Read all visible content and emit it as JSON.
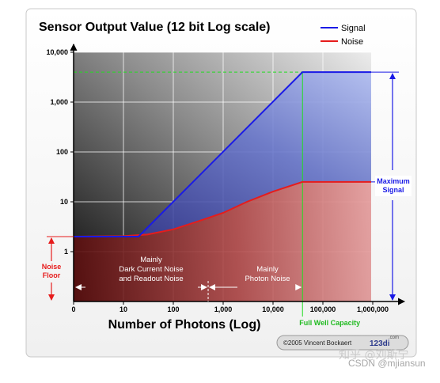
{
  "chart_data": {
    "type": "line",
    "title": "Sensor Output Value (12 bit Log scale)",
    "xlabel": "Number of Photons (Log)",
    "ylabel": "",
    "x_scale": "log",
    "y_scale": "log",
    "x_ticks": [
      "0",
      "10",
      "100",
      "1,000",
      "10,000",
      "100,000",
      "1,000,000"
    ],
    "y_ticks": [
      "1",
      "10",
      "100",
      "1,000",
      "10,000"
    ],
    "xlim": [
      1,
      3000000
    ],
    "ylim": [
      0.1,
      10000
    ],
    "grid": true,
    "legend_position": "top-right",
    "series": [
      {
        "name": "Signal",
        "color": "#1a1ae6",
        "points": [
          [
            1,
            2
          ],
          [
            20,
            2
          ],
          [
            39000,
            4000
          ],
          [
            3000000,
            4000
          ]
        ]
      },
      {
        "name": "Noise",
        "color": "#e61c1c",
        "points": [
          [
            1,
            2
          ],
          [
            10,
            2.05
          ],
          [
            30,
            2.2
          ],
          [
            100,
            2.8
          ],
          [
            300,
            4
          ],
          [
            1000,
            6
          ],
          [
            3000,
            10
          ],
          [
            10000,
            16
          ],
          [
            39000,
            25
          ],
          [
            3000000,
            25
          ]
        ]
      }
    ],
    "annotations": {
      "noise_floor": "Noise\nFloor",
      "maximum_signal": "Maximum\nSignal",
      "full_well_capacity": "Full Well Capacity",
      "region_left": "Mainly\nDark Current Noise\nand Readout Noise",
      "region_right": "Mainly\nPhoton Noise"
    },
    "credit": {
      "text": "©2005 Vincent Bockaert",
      "logo": "123di",
      "logo_suffix": ".com"
    }
  },
  "watermark": {
    "line1": "知乎 @刘斯宁",
    "line2": "CSDN @mjiansun"
  }
}
